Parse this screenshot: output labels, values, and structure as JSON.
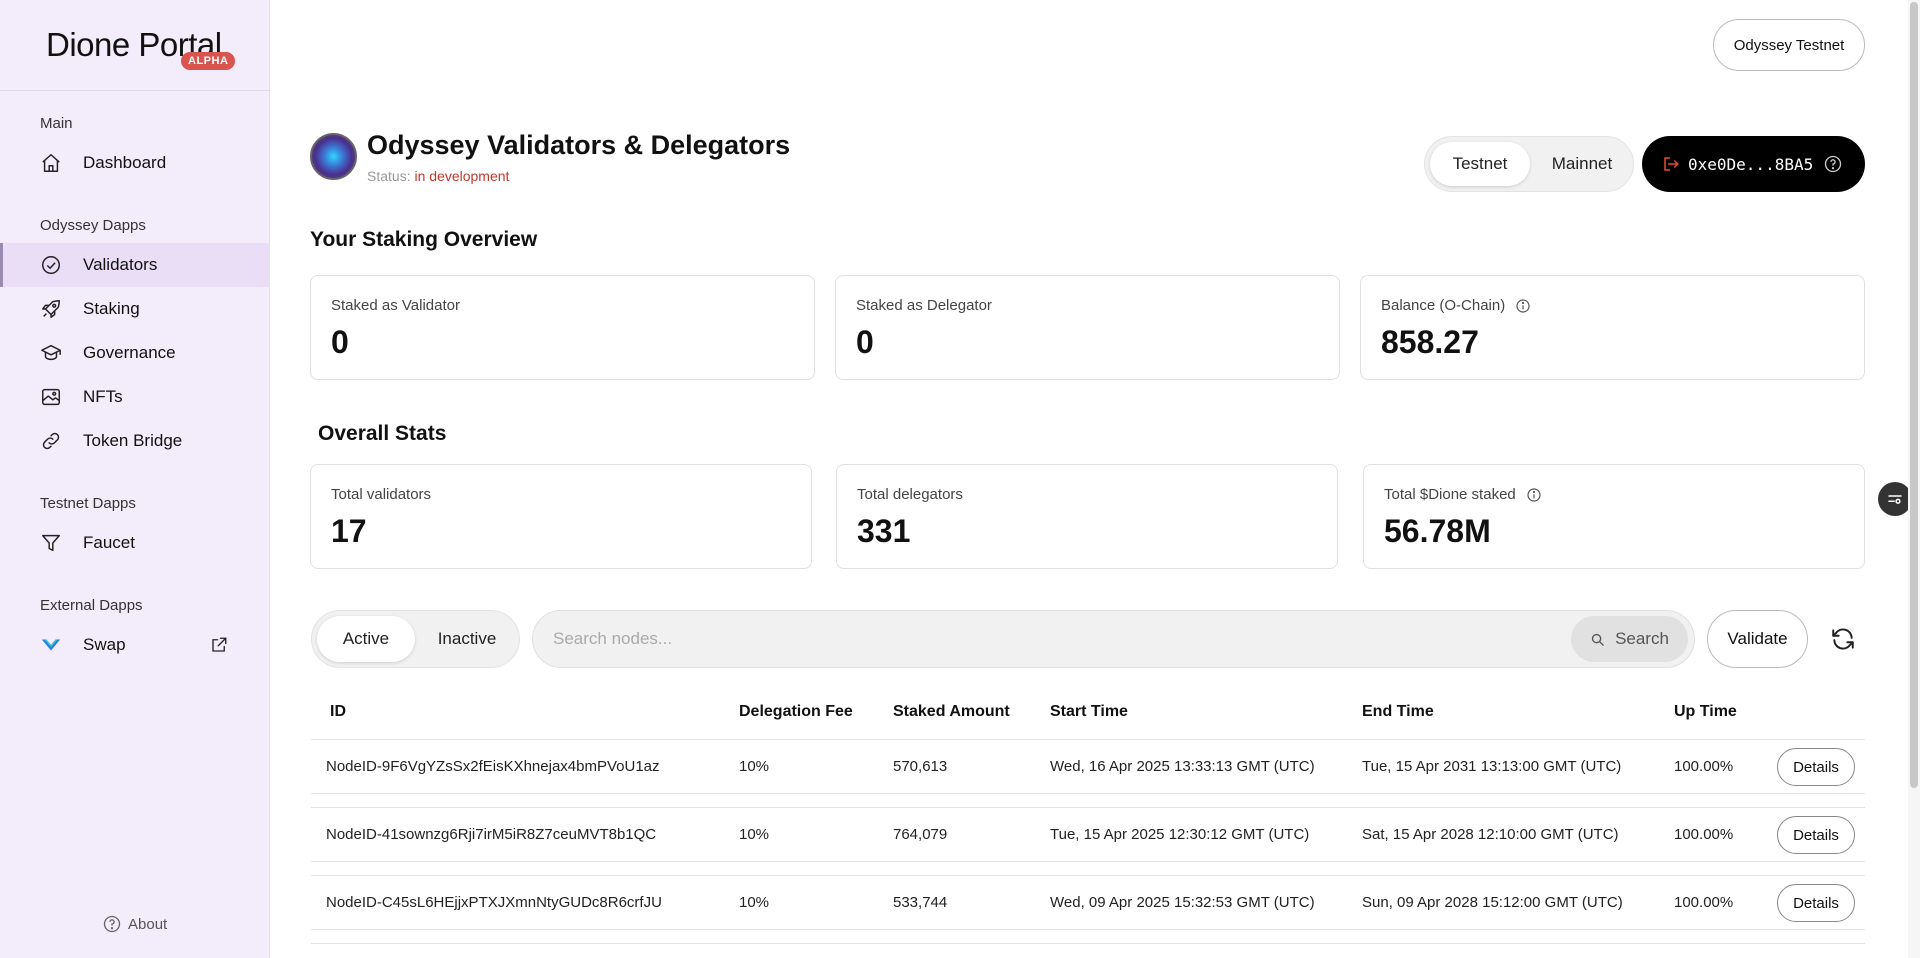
{
  "sidebar": {
    "brand": "Dione Portal",
    "badge": "ALPHA",
    "sections": [
      {
        "label": "Main"
      },
      {
        "label": "Odyssey Dapps"
      },
      {
        "label": "Testnet Dapps"
      },
      {
        "label": "External Dapps"
      }
    ],
    "items": [
      {
        "label": "Dashboard",
        "icon": "home-icon"
      },
      {
        "label": "Validators",
        "icon": "check-circle-icon",
        "active": true
      },
      {
        "label": "Staking",
        "icon": "rocket-icon"
      },
      {
        "label": "Governance",
        "icon": "graduation-cap-icon"
      },
      {
        "label": "NFTs",
        "icon": "image-icon"
      },
      {
        "label": "Token Bridge",
        "icon": "link-icon"
      },
      {
        "label": "Faucet",
        "icon": "filter-icon"
      },
      {
        "label": "Swap",
        "icon": "swap-logo-icon"
      }
    ],
    "about": "About"
  },
  "header": {
    "network_button": "Odyssey Testnet",
    "title": "Odyssey Validators & Delegators",
    "status_label": "Status:",
    "status_value": "in development",
    "network_toggle": [
      "Testnet",
      "Mainnet"
    ],
    "wallet": "0xe0De...8BA5"
  },
  "staking_overview": {
    "heading": "Your Staking Overview",
    "cards": [
      {
        "label": "Staked as Validator",
        "value": "0"
      },
      {
        "label": "Staked as Delegator",
        "value": "0"
      },
      {
        "label": "Balance (O-Chain)",
        "value": "858.27"
      }
    ]
  },
  "overall_stats": {
    "heading": "Overall Stats",
    "cards": [
      {
        "label": "Total validators",
        "value": "17"
      },
      {
        "label": "Total delegators",
        "value": "331"
      },
      {
        "label": "Total $Dione staked",
        "value": "56.78M"
      }
    ]
  },
  "filters": {
    "tabs": [
      "Active",
      "Inactive"
    ],
    "search_placeholder": "Search nodes...",
    "search_button": "Search",
    "validate_button": "Validate"
  },
  "table": {
    "columns": [
      "ID",
      "Delegation Fee",
      "Staked Amount",
      "Start Time",
      "End Time",
      "Up Time"
    ],
    "details_label": "Details",
    "rows": [
      {
        "id": "NodeID-9F6VgYZsSx2fEisKXhnejax4bmPVoU1az",
        "fee": "10%",
        "staked": "570,613",
        "start": "Wed, 16 Apr 2025 13:33:13 GMT (UTC)",
        "end": "Tue, 15 Apr 2031 13:13:00 GMT (UTC)",
        "uptime": "100.00%"
      },
      {
        "id": "NodeID-41sownzg6Rji7irM5iR8Z7ceuMVT8b1QC",
        "fee": "10%",
        "staked": "764,079",
        "start": "Tue, 15 Apr 2025 12:30:12 GMT (UTC)",
        "end": "Sat, 15 Apr 2028 12:10:00 GMT (UTC)",
        "uptime": "100.00%"
      },
      {
        "id": "NodeID-C45sL6HEjjxPTXJXmnNtyGUDc8R6crfJU",
        "fee": "10%",
        "staked": "533,744",
        "start": "Wed, 09 Apr 2025 15:32:53 GMT (UTC)",
        "end": "Sun, 09 Apr 2028 15:12:00 GMT (UTC)",
        "uptime": "100.00%"
      }
    ]
  }
}
